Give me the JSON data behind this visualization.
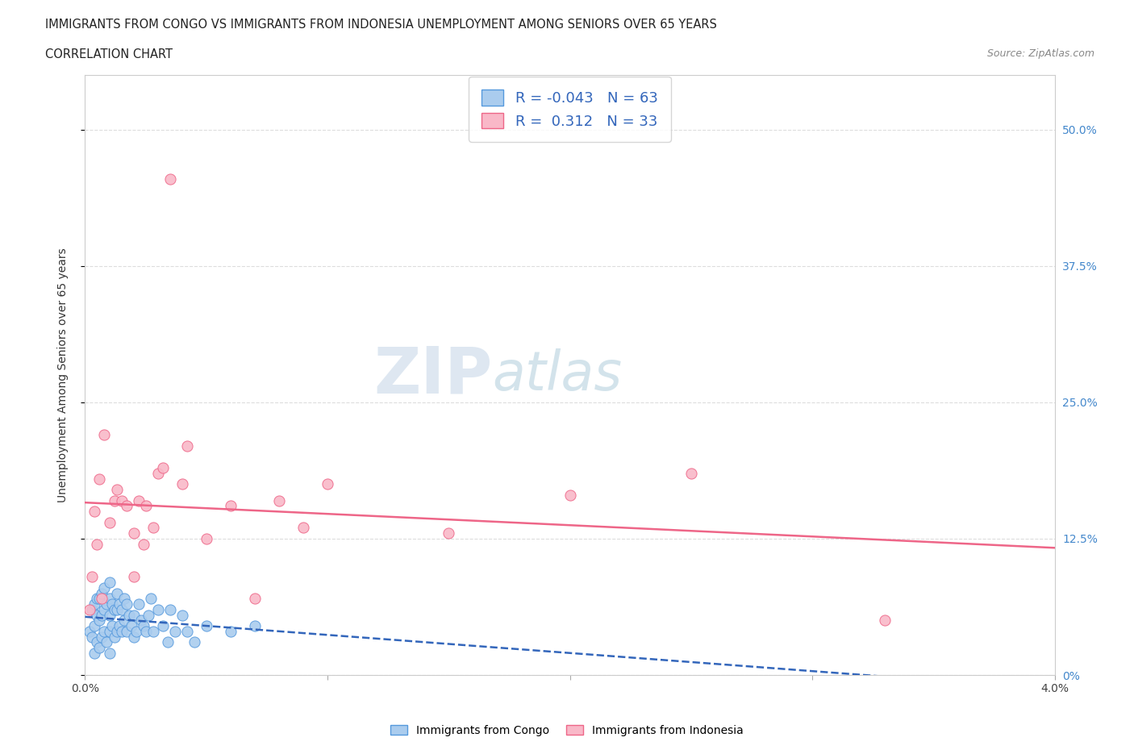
{
  "title_line1": "IMMIGRANTS FROM CONGO VS IMMIGRANTS FROM INDONESIA UNEMPLOYMENT AMONG SENIORS OVER 65 YEARS",
  "title_line2": "CORRELATION CHART",
  "source_text": "Source: ZipAtlas.com",
  "ylabel": "Unemployment Among Seniors over 65 years",
  "xlim": [
    0.0,
    0.04
  ],
  "ylim": [
    0.0,
    0.55
  ],
  "yticks_right": [
    0.0,
    0.125,
    0.25,
    0.375,
    0.5
  ],
  "ytick_labels_right": [
    "0%",
    "12.5%",
    "25.0%",
    "37.5%",
    "50.0%"
  ],
  "xtick_positions": [
    0.0,
    0.01,
    0.02,
    0.03,
    0.04
  ],
  "xtick_labels": [
    "0.0%",
    "",
    "",
    "",
    "4.0%"
  ],
  "congo_fill_color": "#aaccee",
  "congo_edge_color": "#5599dd",
  "indonesia_fill_color": "#f9b8c8",
  "indonesia_edge_color": "#ee6688",
  "congo_line_color": "#3366bb",
  "indonesia_line_color": "#ee6688",
  "background_color": "#ffffff",
  "grid_color": "#dddddd",
  "watermark_text": "ZIP",
  "watermark_text2": "atlas",
  "legend_R_congo": "-0.043",
  "legend_N_congo": "63",
  "legend_R_indonesia": "0.312",
  "legend_N_indonesia": "33",
  "congo_scatter_x": [
    0.0002,
    0.0003,
    0.0003,
    0.0004,
    0.0004,
    0.0004,
    0.0005,
    0.0005,
    0.0005,
    0.0006,
    0.0006,
    0.0006,
    0.0007,
    0.0007,
    0.0007,
    0.0008,
    0.0008,
    0.0008,
    0.0009,
    0.0009,
    0.001,
    0.001,
    0.001,
    0.001,
    0.001,
    0.0011,
    0.0011,
    0.0012,
    0.0012,
    0.0013,
    0.0013,
    0.0013,
    0.0014,
    0.0014,
    0.0015,
    0.0015,
    0.0016,
    0.0016,
    0.0017,
    0.0017,
    0.0018,
    0.0019,
    0.002,
    0.002,
    0.0021,
    0.0022,
    0.0023,
    0.0024,
    0.0025,
    0.0026,
    0.0027,
    0.0028,
    0.003,
    0.0032,
    0.0034,
    0.0035,
    0.0037,
    0.004,
    0.0042,
    0.0045,
    0.005,
    0.006,
    0.007
  ],
  "congo_scatter_y": [
    0.04,
    0.035,
    0.06,
    0.02,
    0.045,
    0.065,
    0.03,
    0.055,
    0.07,
    0.025,
    0.05,
    0.07,
    0.035,
    0.055,
    0.075,
    0.04,
    0.06,
    0.08,
    0.03,
    0.065,
    0.02,
    0.04,
    0.055,
    0.07,
    0.085,
    0.045,
    0.065,
    0.035,
    0.06,
    0.04,
    0.06,
    0.075,
    0.045,
    0.065,
    0.04,
    0.06,
    0.05,
    0.07,
    0.04,
    0.065,
    0.055,
    0.045,
    0.035,
    0.055,
    0.04,
    0.065,
    0.05,
    0.045,
    0.04,
    0.055,
    0.07,
    0.04,
    0.06,
    0.045,
    0.03,
    0.06,
    0.04,
    0.055,
    0.04,
    0.03,
    0.045,
    0.04,
    0.045
  ],
  "indonesia_scatter_x": [
    0.0002,
    0.0003,
    0.0004,
    0.0005,
    0.0006,
    0.0007,
    0.0008,
    0.001,
    0.0012,
    0.0013,
    0.0015,
    0.0017,
    0.002,
    0.002,
    0.0022,
    0.0024,
    0.0025,
    0.0028,
    0.003,
    0.0032,
    0.0035,
    0.004,
    0.0042,
    0.005,
    0.006,
    0.007,
    0.008,
    0.009,
    0.01,
    0.015,
    0.02,
    0.025,
    0.033
  ],
  "indonesia_scatter_y": [
    0.06,
    0.09,
    0.15,
    0.12,
    0.18,
    0.07,
    0.22,
    0.14,
    0.16,
    0.17,
    0.16,
    0.155,
    0.09,
    0.13,
    0.16,
    0.12,
    0.155,
    0.135,
    0.185,
    0.19,
    0.455,
    0.175,
    0.21,
    0.125,
    0.155,
    0.07,
    0.16,
    0.135,
    0.175,
    0.13,
    0.165,
    0.185,
    0.05
  ],
  "legend_label_congo": "Immigrants from Congo",
  "legend_label_indonesia": "Immigrants from Indonesia"
}
